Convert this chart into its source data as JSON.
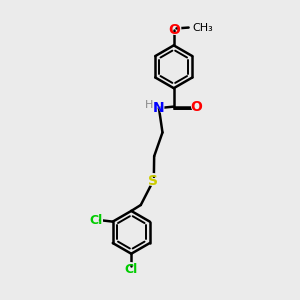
{
  "bg_color": "#ebebeb",
  "bond_color": "#000000",
  "bond_lw": 1.8,
  "inner_lw": 1.4,
  "atom_colors": {
    "O": "#ff0000",
    "N": "#0000ff",
    "S": "#cccc00",
    "Cl": "#00cc00",
    "H": "#888888",
    "C": "#000000"
  },
  "font_size": 9,
  "fig_size": [
    3.0,
    3.0
  ],
  "dpi": 100
}
